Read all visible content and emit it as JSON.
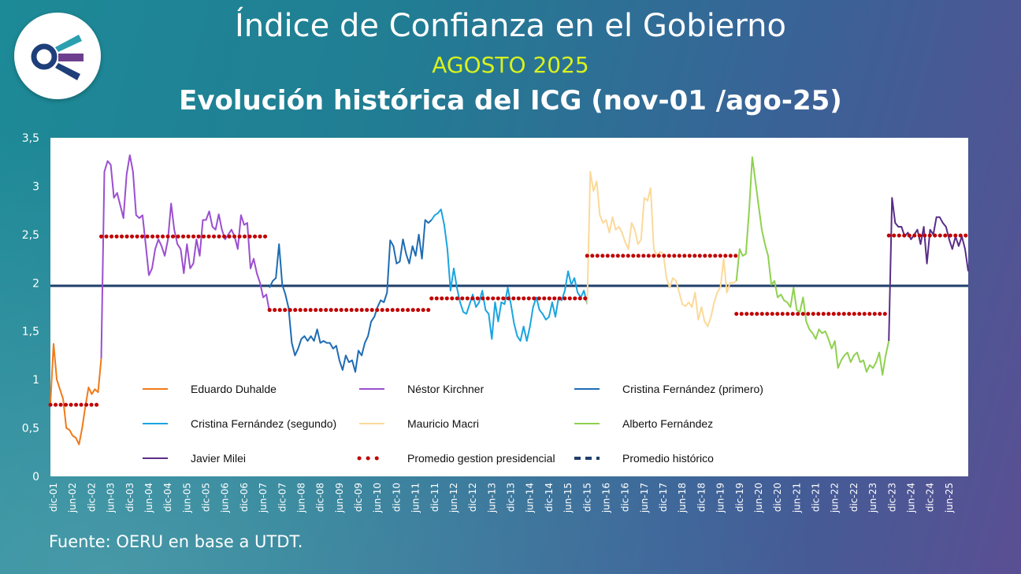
{
  "header": {
    "title": "Índice de Confianza en el Gobierno",
    "subtitle": "AGOSTO 2025",
    "heading": "Evolución histórica del ICG (nov-01 /ago-25)"
  },
  "footer": {
    "source": "Fuente: OERU en base a UTDT."
  },
  "logo": {
    "icon": "oeru-logo-icon",
    "colors": [
      "#2a9fb0",
      "#6d3f8f",
      "#1f3f7a"
    ]
  },
  "chart_data": {
    "type": "line",
    "ylim": [
      0,
      3.5
    ],
    "yticks": [
      "0",
      "0,5",
      "1",
      "1,5",
      "2",
      "2,5",
      "3",
      "3,5"
    ],
    "xticks": [
      "dic-01",
      "jun-02",
      "dic-02",
      "jun-03",
      "dic-03",
      "jun-04",
      "dic-04",
      "jun-05",
      "dic-05",
      "jun-06",
      "dic-06",
      "jun-07",
      "dic-07",
      "jun-08",
      "dic-08",
      "jun-09",
      "dic-09",
      "jun-10",
      "dic-10",
      "jun-11",
      "dic-11",
      "jun-12",
      "dic-12",
      "jun-13",
      "dic-13",
      "jun-14",
      "dic-14",
      "jun-15",
      "dic-15",
      "jun-16",
      "dic-16",
      "jun-17",
      "dic-17",
      "jun-18",
      "dic-18",
      "jun-19",
      "dic-19",
      "jun-20",
      "dic-20",
      "jun-21",
      "dic-21",
      "jun-22",
      "dic-22",
      "jun-23",
      "dic-23",
      "jun-24",
      "dic-24",
      "jun-25"
    ],
    "x_start": "nov-01",
    "x_end": "ago-25",
    "grid": false,
    "legend_position": "inside-bottom",
    "series": [
      {
        "name": "Eduardo Duhalde",
        "color": "#f07a1a",
        "start": 0,
        "values": [
          0.75,
          1.37,
          1.0,
          0.9,
          0.8,
          0.5,
          0.48,
          0.42,
          0.4,
          0.33,
          0.5,
          0.72,
          0.92,
          0.85,
          0.9,
          0.87,
          1.22
        ]
      },
      {
        "name": "Néstor Kirchner",
        "color": "#9b4fd0",
        "start": 16,
        "values": [
          1.22,
          3.15,
          3.26,
          3.22,
          2.88,
          2.93,
          2.8,
          2.67,
          3.12,
          3.32,
          3.15,
          2.7,
          2.67,
          2.7,
          2.4,
          2.08,
          2.15,
          2.35,
          2.45,
          2.38,
          2.28,
          2.45,
          2.82,
          2.55,
          2.4,
          2.35,
          2.1,
          2.4,
          2.15,
          2.2,
          2.45,
          2.28,
          2.65,
          2.65,
          2.74,
          2.58,
          2.55,
          2.71,
          2.55,
          2.45,
          2.5,
          2.55,
          2.48,
          2.35,
          2.7,
          2.6,
          2.62,
          2.15,
          2.25,
          2.1,
          2.0,
          1.85,
          1.88,
          1.7
        ]
      },
      {
        "name": "Cristina Fernández (primero)",
        "color": "#1e6cb3",
        "start": 69,
        "values": [
          1.95,
          2.02,
          2.05,
          2.4,
          1.98,
          1.88,
          1.74,
          1.38,
          1.25,
          1.32,
          1.42,
          1.45,
          1.4,
          1.45,
          1.4,
          1.52,
          1.38,
          1.4,
          1.38,
          1.38,
          1.32,
          1.35,
          1.2,
          1.1,
          1.25,
          1.18,
          1.2,
          1.08,
          1.3,
          1.25,
          1.38,
          1.45,
          1.6,
          1.65,
          1.75,
          1.82,
          1.8,
          1.9,
          2.44,
          2.38,
          2.2,
          2.22,
          2.45,
          2.3,
          2.2,
          2.38,
          2.28,
          2.5,
          2.25,
          2.65,
          2.62,
          2.65
        ]
      },
      {
        "name": "Cristina Fernández (segundo)",
        "color": "#1aa5e0",
        "start": 120,
        "values": [
          2.65,
          2.7,
          2.72,
          2.76,
          2.6,
          2.35,
          1.92,
          2.15,
          1.95,
          1.8,
          1.7,
          1.68,
          1.78,
          1.88,
          1.75,
          1.8,
          1.92,
          1.72,
          1.68,
          1.42,
          1.8,
          1.6,
          1.8,
          1.78,
          1.95,
          1.78,
          1.58,
          1.45,
          1.4,
          1.55,
          1.4,
          1.55,
          1.75,
          1.85,
          1.72,
          1.68,
          1.62,
          1.65,
          1.8,
          1.65,
          1.85,
          1.82,
          1.92,
          2.12,
          1.98,
          2.05,
          1.9,
          1.85,
          1.92,
          1.78
        ]
      },
      {
        "name": "Mauricio Macri",
        "color": "#fbd99a",
        "start": 169,
        "values": [
          1.78,
          3.15,
          2.95,
          3.05,
          2.7,
          2.62,
          2.65,
          2.52,
          2.68,
          2.55,
          2.58,
          2.52,
          2.42,
          2.35,
          2.62,
          2.55,
          2.4,
          2.45,
          2.88,
          2.85,
          2.98,
          2.35,
          2.28,
          2.32,
          2.3,
          2.05,
          1.95,
          2.05,
          2.02,
          1.9,
          1.78,
          1.76,
          1.8,
          1.75,
          1.9,
          1.62,
          1.75,
          1.6,
          1.55,
          1.65,
          1.8,
          1.9,
          1.96,
          2.25,
          1.9,
          2.0,
          2.0,
          2.02
        ]
      },
      {
        "name": "Alberto Fernández",
        "color": "#8fd14f",
        "start": 216,
        "values": [
          2.02,
          2.35,
          2.28,
          2.3,
          2.75,
          3.3,
          3.05,
          2.8,
          2.55,
          2.4,
          2.28,
          1.98,
          2.02,
          1.85,
          1.88,
          1.82,
          1.8,
          1.75,
          1.95,
          1.72,
          1.7,
          1.85,
          1.6,
          1.52,
          1.48,
          1.42,
          1.52,
          1.48,
          1.5,
          1.42,
          1.32,
          1.4,
          1.12,
          1.2,
          1.25,
          1.28,
          1.18,
          1.25,
          1.28,
          1.18,
          1.2,
          1.08,
          1.15,
          1.12,
          1.18,
          1.28,
          1.05,
          1.25,
          1.4
        ]
      },
      {
        "name": "Javier Milei",
        "color": "#5a2d87",
        "start": 264,
        "values": [
          1.4,
          2.88,
          2.62,
          2.58,
          2.58,
          2.48,
          2.52,
          2.45,
          2.5,
          2.55,
          2.4,
          2.58,
          2.2,
          2.55,
          2.5,
          2.68,
          2.68,
          2.62,
          2.58,
          2.45,
          2.35,
          2.48,
          2.38,
          2.48,
          2.35,
          2.12
        ]
      }
    ],
    "averages": [
      {
        "name": "Promedio gestion presidencial",
        "color": "#c00000",
        "segments": [
          {
            "president": "Eduardo Duhalde",
            "value": 0.74
          },
          {
            "president": "Néstor Kirchner",
            "value": 2.48
          },
          {
            "president": "Cristina Fernández (primero)",
            "value": 1.72
          },
          {
            "president": "Cristina Fernández (segundo)",
            "value": 1.84
          },
          {
            "president": "Mauricio Macri",
            "value": 2.28
          },
          {
            "president": "Alberto Fernández",
            "value": 1.68
          },
          {
            "president": "Javier Milei",
            "value": 2.49
          }
        ]
      },
      {
        "name": "Promedio histórico",
        "color": "#1f3f6b",
        "value": 1.97
      }
    ],
    "legend": [
      {
        "label": "Eduardo Duhalde",
        "color": "#f07a1a",
        "style": "line"
      },
      {
        "label": "Néstor Kirchner",
        "color": "#9b4fd0",
        "style": "line"
      },
      {
        "label": "Cristina Fernández (primero)",
        "color": "#1e6cb3",
        "style": "line"
      },
      {
        "label": "Cristina Fernández (segundo)",
        "color": "#1aa5e0",
        "style": "line"
      },
      {
        "label": "Mauricio Macri",
        "color": "#fbd99a",
        "style": "line"
      },
      {
        "label": "Alberto Fernández",
        "color": "#8fd14f",
        "style": "line"
      },
      {
        "label": "Javier Milei",
        "color": "#5a2d87",
        "style": "line"
      },
      {
        "label": "Promedio gestion presidencial",
        "color": "#c00000",
        "style": "dots"
      },
      {
        "label": "Promedio histórico",
        "color": "#1f3f6b",
        "style": "dash"
      }
    ]
  }
}
